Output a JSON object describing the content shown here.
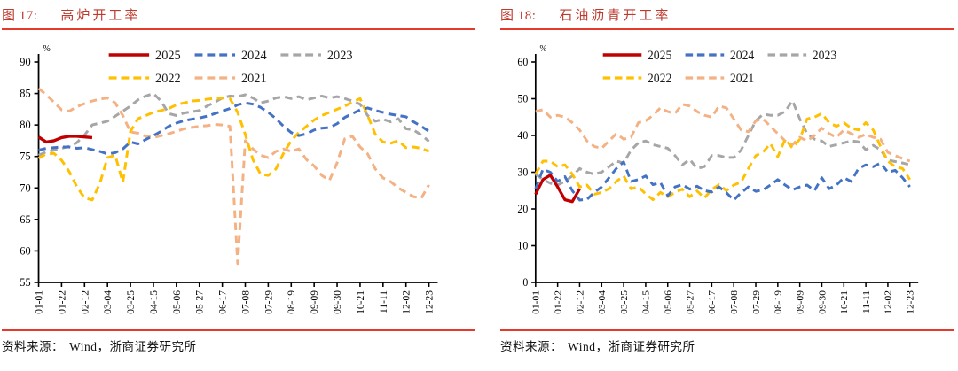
{
  "page": {
    "background": "#ffffff",
    "accent_red": "#bd3a2e",
    "rule_red": "#e5392b"
  },
  "figures": [
    {
      "caption_prefix": "图 17:",
      "caption_title": "高炉开工率",
      "source_label": "资料来源：",
      "source_text": "Wind，浙商证券研究所",
      "chart_data": {
        "type": "line",
        "title": "高炉开工率",
        "unit": "%",
        "ylim": [
          55,
          90
        ],
        "yticks": [
          90,
          85,
          80,
          75,
          70,
          65,
          60,
          55
        ],
        "grid": false,
        "legend_position": "top-center",
        "legend_rows": [
          [
            "2025",
            "2024",
            "2023"
          ],
          [
            "2022",
            "2021"
          ]
        ],
        "x_tick_labels": [
          "01-01",
          "01-22",
          "02-12",
          "03-04",
          "03-25",
          "04-15",
          "05-06",
          "05-27",
          "06-17",
          "07-08",
          "07-29",
          "08-19",
          "09-09",
          "09-30",
          "10-21",
          "11-11",
          "12-02",
          "12-23"
        ],
        "weeks_per_tick": 3,
        "series": [
          {
            "name": "2025",
            "color": "#c00000",
            "dash": "solid",
            "values": [
              78.1,
              77.3,
              77.5,
              78.0,
              78.2,
              78.2,
              78.1,
              78.0
            ]
          },
          {
            "name": "2024",
            "color": "#4472c4",
            "dash": "dashed",
            "values": [
              76.0,
              76.3,
              76.4,
              76.5,
              76.5,
              76.3,
              76.4,
              76.1,
              75.8,
              75.4,
              75.6,
              76.2,
              77.3,
              77.0,
              77.7,
              78.3,
              79.0,
              79.8,
              80.3,
              80.7,
              80.9,
              81.1,
              81.4,
              81.8,
              82.2,
              82.6,
              83.2,
              83.5,
              83.3,
              82.8,
              82.0,
              81.0,
              79.8,
              78.8,
              78.3,
              78.6,
              79.2,
              79.5,
              79.6,
              80.2,
              81.2,
              81.8,
              82.4,
              82.7,
              82.3,
              82.0,
              81.7,
              81.5,
              81.3,
              80.5,
              79.8,
              79.0
            ]
          },
          {
            "name": "2023",
            "color": "#a6a6a6",
            "dash": "dashed",
            "values": [
              75.2,
              75.7,
              76.0,
              76.3,
              76.6,
              77.2,
              78.4,
              80.0,
              80.3,
              80.6,
              81.4,
              82.2,
              83.0,
              84.0,
              84.6,
              85.0,
              83.8,
              81.8,
              81.5,
              81.9,
              82.1,
              82.3,
              83.0,
              83.6,
              84.3,
              84.6,
              84.5,
              84.8,
              84.3,
              83.5,
              83.8,
              84.3,
              84.5,
              84.2,
              84.5,
              84.0,
              84.3,
              84.6,
              84.3,
              84.5,
              84.2,
              83.8,
              83.3,
              81.5,
              80.6,
              80.9,
              80.5,
              81.0,
              79.4,
              79.2,
              78.4,
              77.4
            ]
          },
          {
            "name": "2022",
            "color": "#ffc000",
            "dash": "dashed",
            "values": [
              74.7,
              75.4,
              75.5,
              74.4,
              72.6,
              70.2,
              68.4,
              68.1,
              70.7,
              74.8,
              75.2,
              70.9,
              79.0,
              81.0,
              81.5,
              82.0,
              82.3,
              82.6,
              83.2,
              83.5,
              83.8,
              83.9,
              84.1,
              84.2,
              84.3,
              84.2,
              82.0,
              78.5,
              74.5,
              72.2,
              72.0,
              73.0,
              75.5,
              77.5,
              78.8,
              79.8,
              80.8,
              81.5,
              82.0,
              82.5,
              83.0,
              83.6,
              84.2,
              81.5,
              78.5,
              77.3,
              77.1,
              77.5,
              76.4,
              76.5,
              76.3,
              75.8
            ]
          },
          {
            "name": "2021",
            "color": "#f4b183",
            "dash": "dashed",
            "values": [
              85.8,
              84.8,
              83.6,
              82.4,
              82.2,
              82.9,
              83.4,
              83.8,
              84.1,
              84.3,
              83.5,
              81.5,
              78.9,
              78.7,
              78.2,
              78.0,
              78.3,
              78.6,
              79.0,
              79.4,
              79.6,
              79.8,
              79.9,
              80.1,
              80.0,
              79.8,
              58.0,
              77.5,
              76.2,
              75.2,
              74.8,
              75.8,
              76.2,
              75.8,
              76.2,
              74.5,
              73.5,
              72.0,
              71.2,
              74.0,
              77.8,
              78.2,
              76.5,
              75.4,
              73.0,
              71.6,
              71.0,
              70.0,
              69.3,
              68.6,
              68.4,
              70.5
            ]
          }
        ]
      }
    },
    {
      "caption_prefix": "图 18:",
      "caption_title": "石油沥青开工率",
      "source_label": "资料来源：",
      "source_text": "Wind，浙商证券研究所",
      "chart_data": {
        "type": "line",
        "title": "石油沥青开工率",
        "unit": "%",
        "ylim": [
          0,
          60
        ],
        "yticks": [
          60,
          50,
          40,
          30,
          20,
          10,
          0
        ],
        "grid": false,
        "legend_position": "top-center",
        "legend_rows": [
          [
            "2025",
            "2024",
            "2023"
          ],
          [
            "2022",
            "2021"
          ]
        ],
        "x_tick_labels": [
          "01-01",
          "01-22",
          "02-12",
          "03-04",
          "03-25",
          "04-15",
          "05-06",
          "05-27",
          "06-17",
          "07-08",
          "07-29",
          "08-19",
          "09-09",
          "09-30",
          "10-21",
          "11-11",
          "12-02",
          "12-23"
        ],
        "weeks_per_tick": 3,
        "series": [
          {
            "name": "2025",
            "color": "#c00000",
            "dash": "solid",
            "values": [
              24.0,
              28.0,
              29.2,
              26.0,
              22.5,
              22.0,
              25.5
            ]
          },
          {
            "name": "2024",
            "color": "#4472c4",
            "dash": "dashed",
            "values": [
              25.5,
              30.8,
              30.0,
              27.5,
              28.8,
              25.0,
              22.4,
              22.6,
              24.5,
              26.0,
              28.5,
              31.0,
              32.8,
              27.5,
              28.0,
              29.0,
              26.6,
              27.2,
              23.6,
              26.0,
              26.6,
              25.4,
              26.2,
              25.0,
              24.6,
              26.0,
              24.4,
              22.4,
              24.4,
              26.0,
              24.8,
              25.2,
              26.5,
              28.0,
              26.5,
              25.2,
              26.0,
              26.5,
              25.0,
              28.5,
              25.5,
              26.5,
              28.5,
              27.5,
              31.0,
              32.0,
              31.5,
              32.5,
              30.0,
              30.5,
              28.5,
              26.0
            ]
          },
          {
            "name": "2023",
            "color": "#a6a6a6",
            "dash": "dashed",
            "values": [
              29.5,
              28.0,
              27.0,
              26.5,
              27.5,
              29.0,
              31.0,
              30.0,
              29.5,
              30.0,
              31.5,
              33.0,
              32.5,
              36.0,
              38.0,
              38.5,
              37.5,
              37.0,
              36.5,
              34.5,
              32.0,
              33.5,
              31.0,
              31.5,
              34.5,
              34.5,
              34.0,
              34.0,
              36.0,
              40.0,
              44.0,
              45.8,
              45.5,
              45.5,
              46.5,
              49.5,
              44.5,
              40.5,
              39.0,
              38.5,
              37.0,
              37.5,
              38.0,
              38.5,
              38.3,
              36.1,
              37.3,
              36.1,
              33.3,
              32.9,
              32.5,
              32.0
            ]
          },
          {
            "name": "2022",
            "color": "#ffc000",
            "dash": "dashed",
            "values": [
              29.5,
              33.0,
              33.0,
              31.5,
              32.0,
              29.5,
              26.0,
              26.5,
              24.0,
              24.5,
              25.5,
              27.5,
              29.0,
              25.5,
              26.0,
              24.1,
              22.5,
              24.5,
              23.3,
              24.5,
              25.4,
              23.3,
              24.9,
              23.0,
              25.3,
              26.6,
              25.0,
              26.5,
              27.3,
              31.0,
              34.5,
              35.5,
              37.8,
              34.2,
              39.0,
              36.6,
              39.0,
              44.5,
              45.0,
              46.0,
              43.5,
              42.5,
              43.5,
              42.0,
              41.5,
              43.5,
              41.5,
              37.0,
              33.0,
              31.5,
              31.0,
              28.0
            ]
          },
          {
            "name": "2021",
            "color": "#f4b183",
            "dash": "dashed",
            "values": [
              46.5,
              47.0,
              45.0,
              45.5,
              45.0,
              43.5,
              41.5,
              38.5,
              37.0,
              36.5,
              38.5,
              40.5,
              39.0,
              39.5,
              43.5,
              44.0,
              45.5,
              47.5,
              46.5,
              46.0,
              48.5,
              48.0,
              46.5,
              45.5,
              45.0,
              48.0,
              47.5,
              44.5,
              41.5,
              41.0,
              44.0,
              44.5,
              42.5,
              40.5,
              38.5,
              37.5,
              39.5,
              38.5,
              40.0,
              42.0,
              40.5,
              39.5,
              41.5,
              40.5,
              39.5,
              40.3,
              39.5,
              39.0,
              35.4,
              34.5,
              33.7,
              33.0
            ]
          }
        ]
      }
    }
  ]
}
